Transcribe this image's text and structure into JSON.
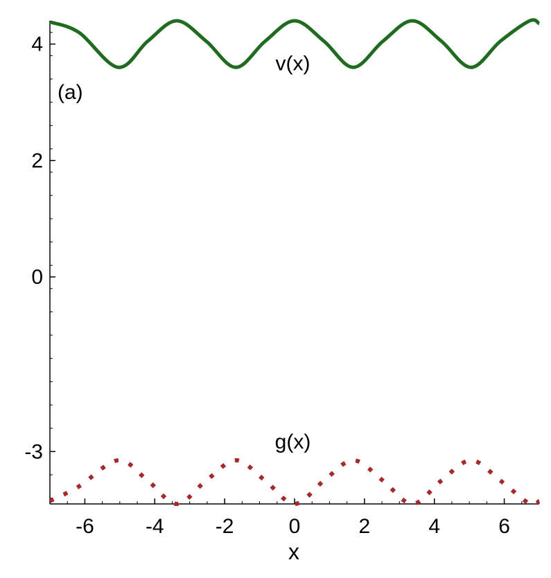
{
  "chart_data": {
    "type": "line",
    "panel_label": "(a)",
    "xlabel": "x",
    "ylabel": "",
    "xlim": [
      -7,
      7
    ],
    "ylim": [
      -3.9,
      4.4
    ],
    "x_ticks": [
      -6,
      -4,
      -2,
      0,
      2,
      4,
      6
    ],
    "x_tick_labels": [
      "-6",
      "-4",
      "-2",
      "0",
      "2",
      "4",
      "6"
    ],
    "y_ticks": [
      4,
      2,
      0,
      -3
    ],
    "y_tick_labels": [
      "4",
      "2",
      "0",
      "-3"
    ],
    "grid": false,
    "series": [
      {
        "name": "v(x)",
        "style": "solid",
        "color": "#1f6b1f",
        "x": [
          -7,
          -6.17,
          -5.05,
          -4.2,
          -3.37,
          -2.53,
          -1.68,
          -0.84,
          0,
          0.84,
          1.68,
          2.53,
          3.37,
          4.2,
          5.05,
          5.89,
          6.73,
          7
        ],
        "y": [
          4.38,
          4.2,
          3.6,
          4.05,
          4.4,
          4.05,
          3.6,
          4.05,
          4.4,
          4.05,
          3.6,
          4.05,
          4.4,
          4.05,
          3.6,
          4.05,
          4.4,
          4.35
        ]
      },
      {
        "name": "g(x)",
        "style": "dotted",
        "color": "#a52a2a",
        "x": [
          -7,
          -6.17,
          -5.05,
          -4.2,
          -3.37,
          -2.53,
          -1.68,
          -0.84,
          0,
          0.84,
          1.68,
          2.53,
          3.37,
          4.2,
          5.05,
          5.89,
          6.73,
          7
        ],
        "y": [
          -3.85,
          -3.6,
          -3.15,
          -3.5,
          -3.9,
          -3.5,
          -3.15,
          -3.5,
          -3.9,
          -3.5,
          -3.15,
          -3.5,
          -3.9,
          -3.5,
          -3.15,
          -3.5,
          -3.9,
          -3.85
        ]
      }
    ],
    "annotations": [
      {
        "text": "v(x)",
        "x": -0.05,
        "y": 3.55
      },
      {
        "text": "g(x)",
        "x": -0.05,
        "y": -2.95
      }
    ]
  }
}
